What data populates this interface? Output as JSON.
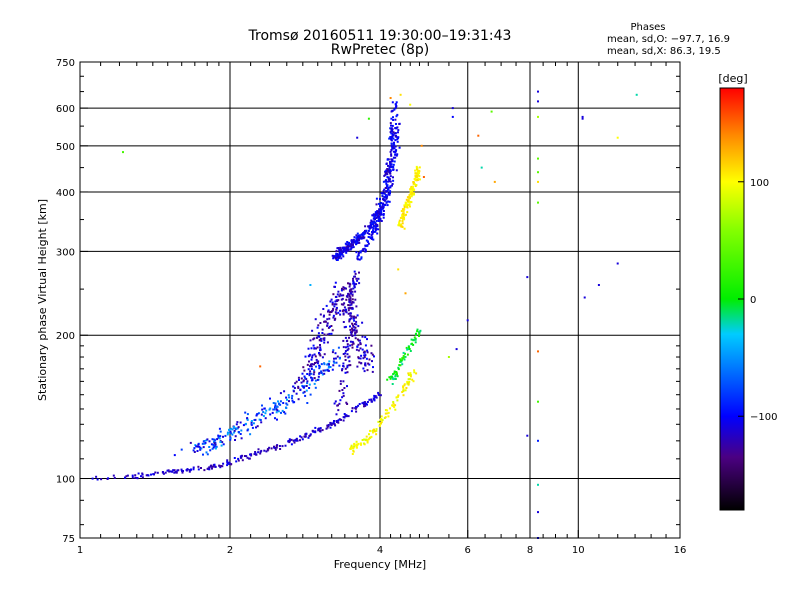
{
  "header": {
    "title_line1": "Tromsø 20160511 19:30:00–19:31:43",
    "title_line2": "RwPretec (8p)"
  },
  "phase_summary": {
    "label": "Phases",
    "line_o": "mean, sd,O: −97.7, 16.9",
    "line_x": "mean, sd,X:  86.3, 19.5"
  },
  "colorbar": {
    "unit_label": "[deg]",
    "ticks": [
      {
        "value": 100,
        "label": "100"
      },
      {
        "value": 0,
        "label": "0"
      },
      {
        "value": -100,
        "label": "−100"
      }
    ],
    "range": [
      -180,
      180
    ],
    "stops": [
      {
        "v": -180,
        "color": "#000000"
      },
      {
        "v": -135,
        "color": "#4b0082"
      },
      {
        "v": -100,
        "color": "#0000ff"
      },
      {
        "v": -30,
        "color": "#00ccff"
      },
      {
        "v": 0,
        "color": "#00ee00"
      },
      {
        "v": 60,
        "color": "#88ff00"
      },
      {
        "v": 100,
        "color": "#ffff00"
      },
      {
        "v": 140,
        "color": "#ff8800"
      },
      {
        "v": 180,
        "color": "#ff0000"
      }
    ]
  },
  "chart_data": {
    "type": "scatter",
    "xlabel": "Frequency [MHz]",
    "ylabel": "Stationary phase Virtual Height [km]",
    "x_scale": "log",
    "y_scale": "log",
    "xlim": [
      1,
      16
    ],
    "ylim": [
      75,
      750
    ],
    "x_ticks": [
      1,
      2,
      4,
      6,
      8,
      10,
      16
    ],
    "y_ticks": [
      75,
      100,
      200,
      300,
      400,
      500,
      600,
      750
    ],
    "x_grid": [
      2,
      4,
      6,
      8,
      10
    ],
    "y_grid": [
      100,
      200,
      300,
      400,
      500,
      600
    ],
    "grid": true,
    "color_by": "phase_deg",
    "bands": [
      {
        "x": [
          1.05,
          1.3,
          1.5,
          1.7,
          1.9,
          2.0,
          2.2,
          2.5,
          2.8,
          3.1,
          3.3,
          3.6,
          3.8,
          4.0
        ],
        "y": [
          100,
          101,
          103,
          105,
          106,
          108,
          112,
          117,
          122,
          128,
          132,
          140,
          145,
          150
        ],
        "spread": 0.02,
        "count": 260,
        "phase": [
          -130,
          -100
        ]
      },
      {
        "x": [
          1.7,
          1.9,
          2.1,
          2.4,
          2.7,
          3.0,
          3.3
        ],
        "y": [
          115,
          120,
          128,
          138,
          150,
          165,
          180
        ],
        "spread": 0.07,
        "count": 260,
        "phase": [
          -125,
          -40
        ]
      },
      {
        "x": [
          2.8,
          3.0,
          3.2,
          3.4,
          3.6,
          3.8
        ],
        "y": [
          160,
          190,
          220,
          250,
          200,
          170
        ],
        "spread": 0.09,
        "count": 280,
        "phase": [
          -140,
          -95
        ]
      },
      {
        "x": [
          3.25,
          3.35,
          3.5,
          3.7,
          3.9,
          4.1,
          4.2,
          4.3
        ],
        "y": [
          290,
          300,
          310,
          325,
          350,
          400,
          480,
          620
        ],
        "spread": 0.03,
        "count": 380,
        "phase": [
          -125,
          -90
        ]
      },
      {
        "x": [
          3.6,
          3.9,
          4.1,
          4.25,
          4.35
        ],
        "y": [
          290,
          330,
          380,
          450,
          560
        ],
        "spread": 0.03,
        "count": 180,
        "phase": [
          -115,
          -90
        ]
      },
      {
        "x": [
          3.3,
          3.4,
          3.5,
          3.5,
          3.6
        ],
        "y": [
          140,
          170,
          210,
          250,
          270
        ],
        "spread": 0.05,
        "count": 120,
        "phase": [
          -135,
          -100
        ]
      },
      {
        "x": [
          4.4,
          4.5,
          4.6,
          4.7,
          4.8
        ],
        "y": [
          340,
          370,
          390,
          420,
          450
        ],
        "spread": 0.025,
        "count": 130,
        "phase": [
          95,
          115
        ]
      },
      {
        "x": [
          3.5,
          3.8,
          4.1,
          4.4,
          4.7
        ],
        "y": [
          115,
          122,
          135,
          150,
          170
        ],
        "spread": 0.025,
        "count": 110,
        "phase": [
          85,
          112
        ]
      },
      {
        "x": [
          4.2,
          4.4,
          4.6,
          4.8
        ],
        "y": [
          160,
          175,
          190,
          205
        ],
        "spread": 0.03,
        "count": 70,
        "phase": [
          -20,
          20
        ]
      }
    ],
    "scatter_points": [
      {
        "x": 1.22,
        "y": 485,
        "phase": 30
      },
      {
        "x": 5.6,
        "y": 600,
        "phase": -110
      },
      {
        "x": 5.6,
        "y": 575,
        "phase": -100
      },
      {
        "x": 6.3,
        "y": 525,
        "phase": 150
      },
      {
        "x": 6.7,
        "y": 590,
        "phase": 40
      },
      {
        "x": 6.4,
        "y": 450,
        "phase": -20
      },
      {
        "x": 6.8,
        "y": 420,
        "phase": 130
      },
      {
        "x": 8.3,
        "y": 650,
        "phase": -110
      },
      {
        "x": 8.3,
        "y": 620,
        "phase": -110
      },
      {
        "x": 8.3,
        "y": 575,
        "phase": 70
      },
      {
        "x": 8.3,
        "y": 470,
        "phase": 40
      },
      {
        "x": 8.3,
        "y": 440,
        "phase": 40
      },
      {
        "x": 8.3,
        "y": 420,
        "phase": 110
      },
      {
        "x": 8.3,
        "y": 380,
        "phase": 40
      },
      {
        "x": 8.3,
        "y": 185,
        "phase": 150
      },
      {
        "x": 8.3,
        "y": 145,
        "phase": 30
      },
      {
        "x": 8.3,
        "y": 120,
        "phase": -90
      },
      {
        "x": 8.3,
        "y": 97,
        "phase": -20
      },
      {
        "x": 8.3,
        "y": 85,
        "phase": -110
      },
      {
        "x": 8.3,
        "y": 75,
        "phase": -100
      },
      {
        "x": 7.9,
        "y": 265,
        "phase": -110
      },
      {
        "x": 7.9,
        "y": 123,
        "phase": -110
      },
      {
        "x": 10.2,
        "y": 575,
        "phase": -110
      },
      {
        "x": 10.2,
        "y": 570,
        "phase": -110
      },
      {
        "x": 10.3,
        "y": 240,
        "phase": -110
      },
      {
        "x": 11.0,
        "y": 255,
        "phase": -110
      },
      {
        "x": 12.0,
        "y": 283,
        "phase": -110
      },
      {
        "x": 12.0,
        "y": 520,
        "phase": 100
      },
      {
        "x": 13.1,
        "y": 640,
        "phase": -20
      },
      {
        "x": 5.7,
        "y": 187,
        "phase": -110
      },
      {
        "x": 5.5,
        "y": 180,
        "phase": 70
      },
      {
        "x": 6.0,
        "y": 215,
        "phase": -110
      },
      {
        "x": 2.9,
        "y": 255,
        "phase": -40
      },
      {
        "x": 3.3,
        "y": 305,
        "phase": -115
      },
      {
        "x": 4.4,
        "y": 640,
        "phase": 110
      },
      {
        "x": 4.6,
        "y": 610,
        "phase": 100
      },
      {
        "x": 4.2,
        "y": 630,
        "phase": 140
      },
      {
        "x": 3.8,
        "y": 570,
        "phase": 20
      },
      {
        "x": 3.6,
        "y": 520,
        "phase": -110
      },
      {
        "x": 2.3,
        "y": 172,
        "phase": 150
      },
      {
        "x": 1.6,
        "y": 115,
        "phase": -80
      },
      {
        "x": 1.55,
        "y": 112,
        "phase": -100
      },
      {
        "x": 4.85,
        "y": 500,
        "phase": 140
      },
      {
        "x": 4.9,
        "y": 430,
        "phase": 150
      },
      {
        "x": 4.35,
        "y": 275,
        "phase": 110
      },
      {
        "x": 4.5,
        "y": 245,
        "phase": 130
      }
    ]
  }
}
